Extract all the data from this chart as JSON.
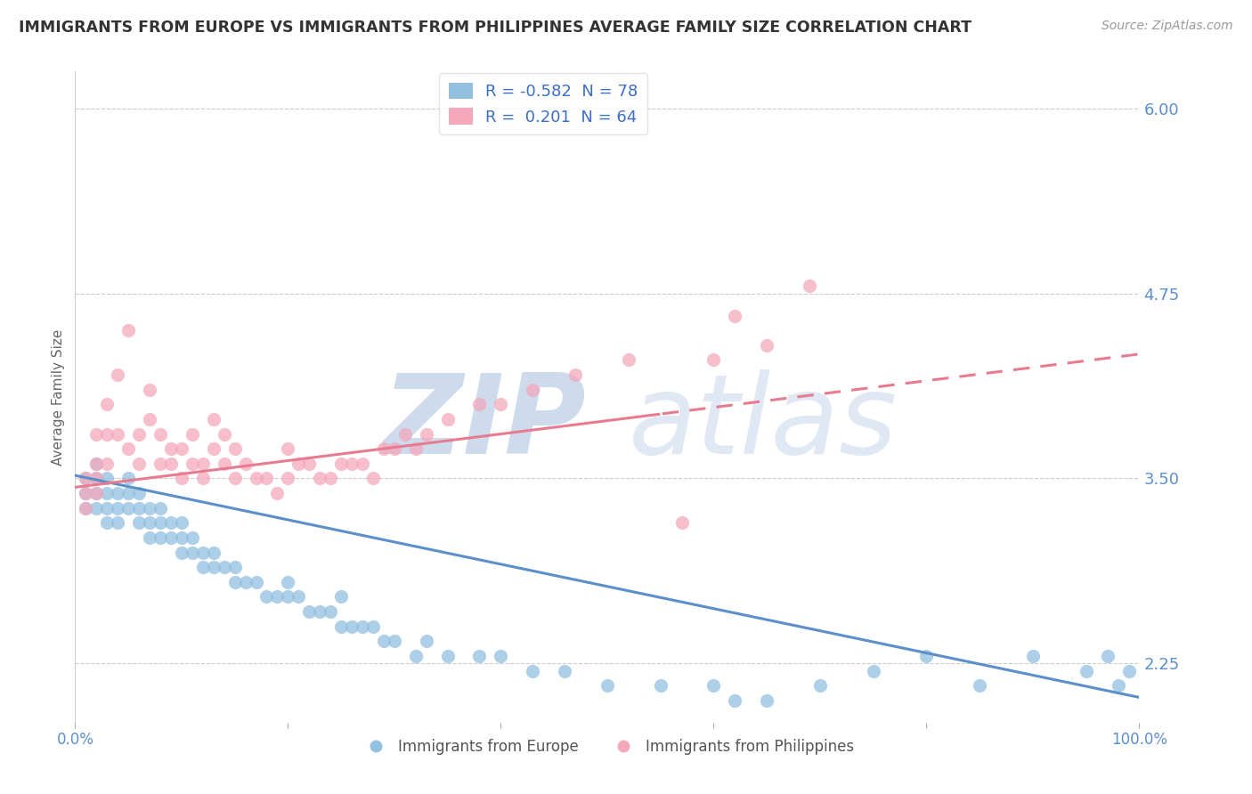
{
  "title": "IMMIGRANTS FROM EUROPE VS IMMIGRANTS FROM PHILIPPINES AVERAGE FAMILY SIZE CORRELATION CHART",
  "source": "Source: ZipAtlas.com",
  "ylabel": "Average Family Size",
  "x_min": 0.0,
  "x_max": 100.0,
  "y_min": 1.85,
  "y_max": 6.25,
  "y_ticks": [
    2.25,
    3.5,
    4.75,
    6.0
  ],
  "color_blue": "#92c0e0",
  "color_pink": "#f5a8bc",
  "color_blue_line": "#5b8fc9",
  "color_pink_line": "#e87b90",
  "color_blue_text": "#3b6fc4",
  "color_tick": "#5b8fc9",
  "R_blue": "-0.582",
  "N_blue": 78,
  "R_pink": "0.201",
  "N_pink": 64,
  "legend_label_blue": "Immigrants from Europe",
  "legend_label_pink": "Immigrants from Philippines",
  "background_color": "#ffffff",
  "grid_color": "#cccccc",
  "title_color": "#333333",
  "blue_reg_x0": 0,
  "blue_reg_y0": 3.52,
  "blue_reg_x1": 100,
  "blue_reg_y1": 2.02,
  "pink_reg_x0": 0,
  "pink_reg_y0": 3.44,
  "pink_reg_x1": 100,
  "pink_reg_y1": 4.34,
  "pink_solid_end": 55,
  "blue_x": [
    1,
    1,
    1,
    2,
    2,
    2,
    2,
    3,
    3,
    3,
    3,
    4,
    4,
    4,
    5,
    5,
    5,
    6,
    6,
    6,
    7,
    7,
    7,
    8,
    8,
    8,
    9,
    9,
    10,
    10,
    10,
    11,
    11,
    12,
    12,
    13,
    13,
    14,
    15,
    15,
    16,
    17,
    18,
    19,
    20,
    20,
    21,
    22,
    23,
    24,
    25,
    25,
    26,
    27,
    28,
    29,
    30,
    32,
    33,
    35,
    38,
    40,
    43,
    46,
    50,
    55,
    60,
    62,
    65,
    70,
    75,
    80,
    85,
    90,
    95,
    97,
    98,
    99
  ],
  "blue_y": [
    3.5,
    3.4,
    3.3,
    3.6,
    3.5,
    3.4,
    3.3,
    3.5,
    3.4,
    3.3,
    3.2,
    3.4,
    3.3,
    3.2,
    3.5,
    3.4,
    3.3,
    3.4,
    3.3,
    3.2,
    3.3,
    3.2,
    3.1,
    3.3,
    3.2,
    3.1,
    3.2,
    3.1,
    3.2,
    3.1,
    3.0,
    3.1,
    3.0,
    3.0,
    2.9,
    3.0,
    2.9,
    2.9,
    2.9,
    2.8,
    2.8,
    2.8,
    2.7,
    2.7,
    2.8,
    2.7,
    2.7,
    2.6,
    2.6,
    2.6,
    2.7,
    2.5,
    2.5,
    2.5,
    2.5,
    2.4,
    2.4,
    2.3,
    2.4,
    2.3,
    2.3,
    2.3,
    2.2,
    2.2,
    2.1,
    2.1,
    2.1,
    2.0,
    2.0,
    2.1,
    2.2,
    2.3,
    2.1,
    2.3,
    2.2,
    2.3,
    2.1,
    2.2
  ],
  "pink_x": [
    1,
    1,
    1,
    2,
    2,
    2,
    2,
    3,
    3,
    3,
    4,
    4,
    5,
    5,
    6,
    6,
    7,
    7,
    8,
    8,
    9,
    9,
    10,
    10,
    11,
    11,
    12,
    12,
    13,
    13,
    14,
    14,
    15,
    15,
    16,
    17,
    18,
    19,
    20,
    20,
    21,
    22,
    23,
    24,
    25,
    26,
    27,
    28,
    29,
    30,
    31,
    32,
    33,
    35,
    38,
    40,
    43,
    47,
    52,
    57,
    60,
    62,
    65,
    69
  ],
  "pink_y": [
    3.5,
    3.4,
    3.3,
    3.8,
    3.6,
    3.5,
    3.4,
    4.0,
    3.8,
    3.6,
    4.2,
    3.8,
    4.5,
    3.7,
    3.8,
    3.6,
    4.1,
    3.9,
    3.8,
    3.6,
    3.7,
    3.6,
    3.7,
    3.5,
    3.8,
    3.6,
    3.6,
    3.5,
    3.9,
    3.7,
    3.8,
    3.6,
    3.7,
    3.5,
    3.6,
    3.5,
    3.5,
    3.4,
    3.7,
    3.5,
    3.6,
    3.6,
    3.5,
    3.5,
    3.6,
    3.6,
    3.6,
    3.5,
    3.7,
    3.7,
    3.8,
    3.7,
    3.8,
    3.9,
    4.0,
    4.0,
    4.1,
    4.2,
    4.3,
    3.2,
    4.3,
    4.6,
    4.4,
    4.8
  ]
}
